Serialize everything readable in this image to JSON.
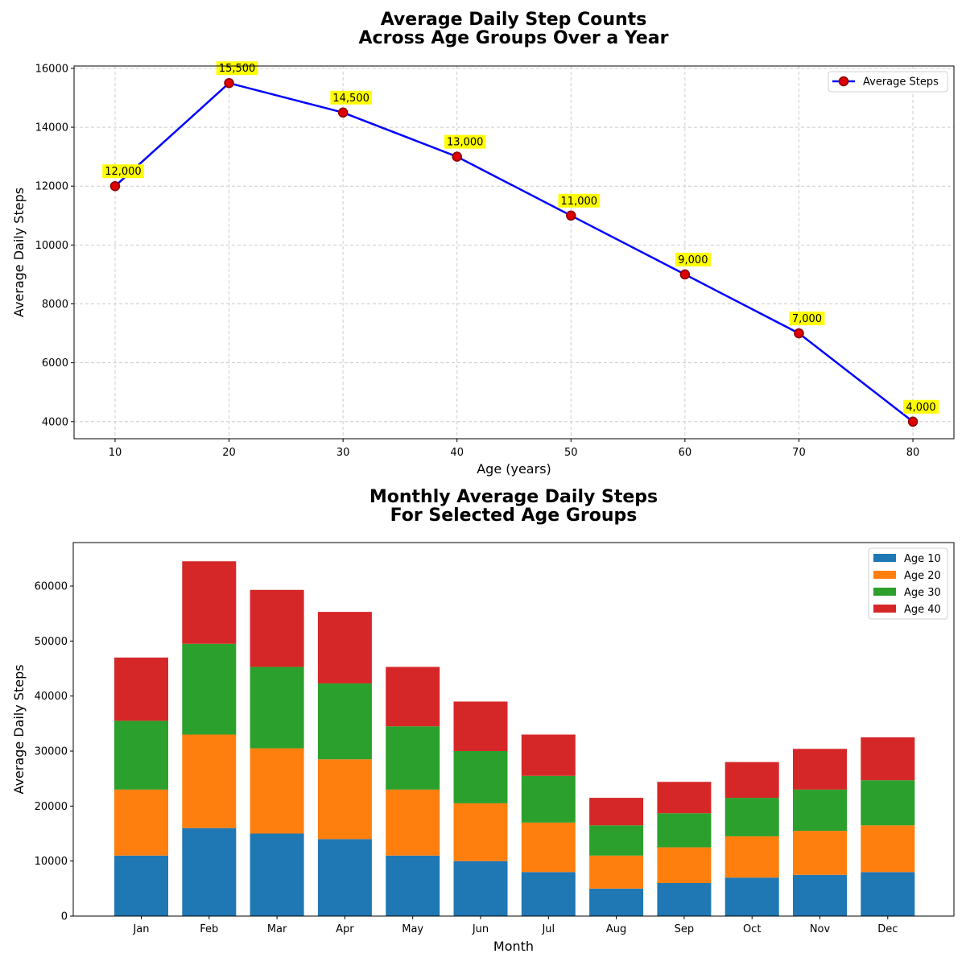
{
  "chart_data": [
    {
      "type": "line",
      "title_lines": [
        "Average Daily Step Counts",
        "Across Age Groups Over a Year"
      ],
      "xlabel": "Age (years)",
      "ylabel": "Average Daily Steps",
      "x": [
        10,
        20,
        30,
        40,
        50,
        60,
        70,
        80
      ],
      "y": [
        12000,
        15500,
        14500,
        13000,
        11000,
        9000,
        7000,
        4000
      ],
      "data_labels": [
        "12,000",
        "15,500",
        "14,500",
        "13,000",
        "11,000",
        "9,000",
        "7,000",
        "4,000"
      ],
      "xticks": [
        10,
        20,
        30,
        40,
        50,
        60,
        70,
        80
      ],
      "yticks": [
        4000,
        6000,
        8000,
        10000,
        12000,
        14000,
        16000
      ],
      "xlim": [
        6.4,
        83.6
      ],
      "ylim": [
        3420,
        16080
      ],
      "grid": true,
      "legend": {
        "placement": "upper-right",
        "entries": [
          "Average Steps"
        ]
      },
      "colors": {
        "line": "#0000ff",
        "marker_fill": "#dd0000",
        "marker_edge": "#8b0000",
        "label_bg": "#ffff00"
      }
    },
    {
      "type": "bar",
      "stacked": true,
      "title_lines": [
        "Monthly Average Daily Steps",
        "For Selected Age Groups"
      ],
      "xlabel": "Month",
      "ylabel": "Average Daily Steps",
      "categories": [
        "Jan",
        "Feb",
        "Mar",
        "Apr",
        "May",
        "Jun",
        "Jul",
        "Aug",
        "Sep",
        "Oct",
        "Nov",
        "Dec"
      ],
      "series": [
        {
          "name": "Age 10",
          "color": "#1f77b4",
          "values": [
            11000,
            16000,
            15000,
            14000,
            11000,
            10000,
            8000,
            5000,
            6000,
            7000,
            7500,
            8000
          ]
        },
        {
          "name": "Age 20",
          "color": "#ff7f0e",
          "values": [
            12000,
            17000,
            15500,
            14500,
            12000,
            10500,
            9000,
            6000,
            6500,
            7500,
            8000,
            8500
          ]
        },
        {
          "name": "Age 30",
          "color": "#2ca02c",
          "values": [
            12500,
            16500,
            14800,
            13800,
            11500,
            9500,
            8500,
            5500,
            6200,
            7000,
            7500,
            8200
          ]
        },
        {
          "name": "Age 40",
          "color": "#d62728",
          "values": [
            11500,
            15000,
            14000,
            13000,
            10800,
            9000,
            7500,
            5000,
            5700,
            6500,
            7400,
            7800
          ]
        }
      ],
      "yticks": [
        0,
        10000,
        20000,
        30000,
        40000,
        50000,
        60000
      ],
      "ylim": [
        0,
        67900
      ],
      "grid": false,
      "legend": {
        "placement": "upper-right"
      }
    }
  ]
}
